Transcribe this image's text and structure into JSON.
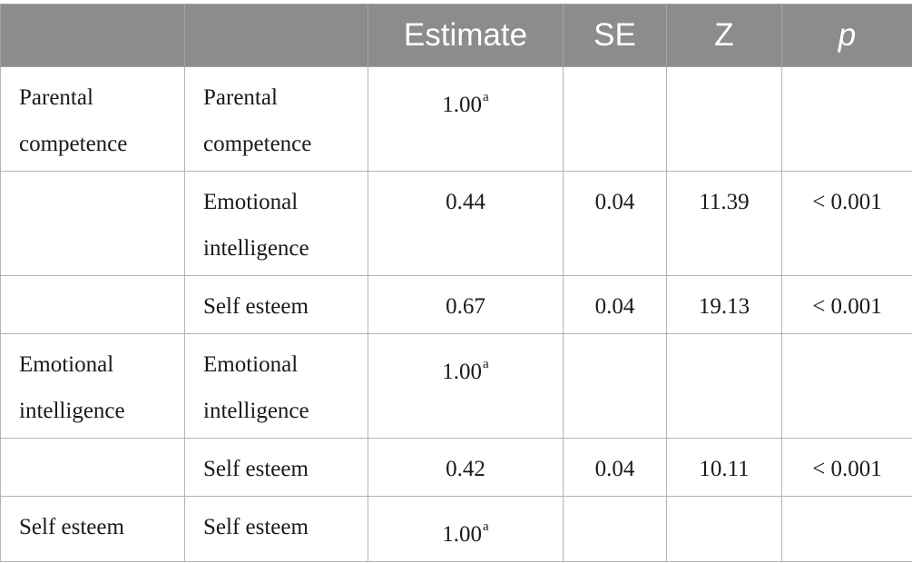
{
  "table": {
    "headers": [
      "",
      "",
      "Estimate",
      "SE",
      "Z",
      "p"
    ],
    "rows": [
      {
        "factor": "Parental competence",
        "indicator": "Parental competence",
        "estimate": "1.00",
        "estimate_note": "a",
        "se": "",
        "z": "",
        "p": ""
      },
      {
        "factor": "",
        "indicator": "Emotional intelligence",
        "estimate": "0.44",
        "estimate_note": "",
        "se": "0.04",
        "z": "11.39",
        "p": "< 0.001"
      },
      {
        "factor": "",
        "indicator": "Self esteem",
        "estimate": "0.67",
        "estimate_note": "",
        "se": "0.04",
        "z": "19.13",
        "p": "< 0.001"
      },
      {
        "factor": "Emotional intelligence",
        "indicator": "Emotional intelligence",
        "estimate": "1.00",
        "estimate_note": "a",
        "se": "",
        "z": "",
        "p": ""
      },
      {
        "factor": "",
        "indicator": "Self esteem",
        "estimate": "0.42",
        "estimate_note": "",
        "se": "0.04",
        "z": "10.11",
        "p": "< 0.001"
      },
      {
        "factor": "Self esteem",
        "indicator": "Self esteem",
        "estimate": "1.00",
        "estimate_note": "a",
        "se": "",
        "z": "",
        "p": ""
      }
    ]
  },
  "colors": {
    "header_bg": "#8c8c8c",
    "header_text": "#ffffff",
    "border": "#b3b3b3",
    "body_text": "#1a1a1a"
  }
}
